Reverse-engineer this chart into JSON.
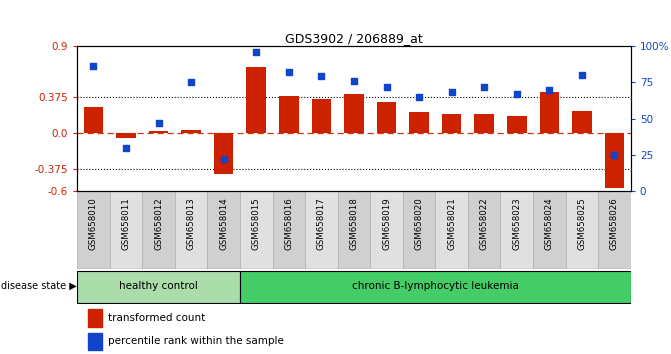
{
  "title": "GDS3902 / 206889_at",
  "samples": [
    "GSM658010",
    "GSM658011",
    "GSM658012",
    "GSM658013",
    "GSM658014",
    "GSM658015",
    "GSM658016",
    "GSM658017",
    "GSM658018",
    "GSM658019",
    "GSM658020",
    "GSM658021",
    "GSM658022",
    "GSM658023",
    "GSM658024",
    "GSM658025",
    "GSM658026"
  ],
  "bar_values": [
    0.27,
    -0.05,
    0.02,
    0.03,
    -0.42,
    0.68,
    0.38,
    0.35,
    0.4,
    0.32,
    0.22,
    0.2,
    0.2,
    0.18,
    0.42,
    0.23,
    -0.57
  ],
  "dot_values": [
    86,
    30,
    47,
    75,
    22,
    96,
    82,
    79,
    76,
    72,
    65,
    68,
    72,
    67,
    70,
    80,
    25
  ],
  "bar_color": "#cc2200",
  "dot_color": "#1144cc",
  "healthy_color": "#aaddaa",
  "leukemia_color": "#44cc66",
  "healthy_count": 5,
  "leukemia_count": 12,
  "ylim": [
    -0.6,
    0.9
  ],
  "y_left_ticks": [
    -0.6,
    -0.375,
    0.0,
    0.375,
    0.9
  ],
  "y_right_ticks": [
    0,
    25,
    50,
    75,
    100
  ],
  "hline_y": [
    0.375,
    -0.375
  ],
  "zero_line_y": 0.0,
  "bg_color": "#ffffff",
  "disease_state_label": "disease state",
  "healthy_label": "healthy control",
  "leukemia_label": "chronic B-lymphocytic leukemia",
  "legend_bar": "transformed count",
  "legend_dot": "percentile rank within the sample"
}
